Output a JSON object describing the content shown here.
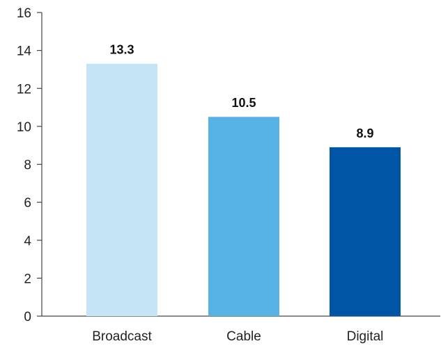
{
  "chart_data": {
    "type": "bar",
    "categories": [
      "Broadcast",
      "Cable",
      "Digital"
    ],
    "values": [
      13.3,
      10.5,
      8.9
    ],
    "data_labels": [
      "13.3",
      "10.5",
      "8.9"
    ],
    "bar_colors": [
      "#c5e4f6",
      "#57b3e5",
      "#0055a5"
    ],
    "title": "",
    "xlabel": "",
    "ylabel": "",
    "ylim": [
      0,
      16
    ],
    "yticks": [
      0,
      2,
      4,
      6,
      8,
      10,
      12,
      14,
      16
    ],
    "ytick_labels": [
      "0",
      "2",
      "4",
      "6",
      "8",
      "10",
      "12",
      "14",
      "16"
    ],
    "grid": false,
    "legend": "none",
    "axis_color": "#444444"
  }
}
